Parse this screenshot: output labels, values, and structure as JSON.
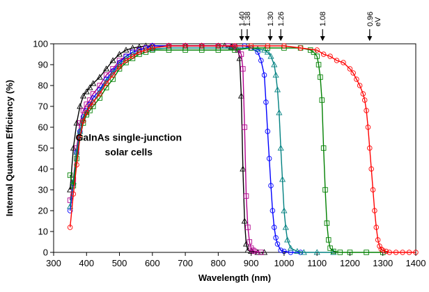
{
  "chart_data": {
    "type": "scatter",
    "xlabel": "Wavelength (nm)",
    "ylabel": "Internal Quantum Efficiency (%)",
    "xlim": [
      300,
      1400
    ],
    "ylim": [
      0,
      100
    ],
    "x_ticks": [
      "300",
      "400",
      "500",
      "600",
      "700",
      "800",
      "900",
      "1000",
      "1100",
      "1200",
      "1300",
      "1400"
    ],
    "y_ticks": [
      "0",
      "10",
      "20",
      "30",
      "40",
      "50",
      "60",
      "70",
      "80",
      "90",
      "100"
    ],
    "grid": false,
    "annotation_line1": "GaInAs single-junction",
    "annotation_line2": "solar cells",
    "bandgap_unit": "eV",
    "bandgap_markers": [
      {
        "label": "1.40",
        "x": 871
      },
      {
        "label": "1.38",
        "x": 888
      },
      {
        "label": "1.30",
        "x": 958
      },
      {
        "label": "1.26",
        "x": 990
      },
      {
        "label": "1.08",
        "x": 1117
      },
      {
        "label": "0.96",
        "x": 1260
      }
    ],
    "series": [
      {
        "marker": "triangle",
        "color": "#000000",
        "x": [
          350,
          360,
          370,
          380,
          390,
          400,
          410,
          420,
          440,
          460,
          480,
          500,
          520,
          540,
          560,
          580,
          600,
          650,
          700,
          750,
          800,
          820,
          840,
          850,
          860,
          865,
          870,
          875,
          880,
          885,
          890,
          900,
          920,
          940
        ],
        "y": [
          30,
          50,
          62,
          70,
          75,
          77,
          79,
          81,
          84,
          88,
          92,
          95,
          97,
          98,
          98.5,
          99,
          99,
          99,
          99,
          99,
          99,
          99,
          98.5,
          98,
          97,
          93,
          75,
          40,
          15,
          4,
          1,
          0.5,
          0,
          0
        ]
      },
      {
        "marker": "square",
        "color": "#b0008c",
        "x": [
          350,
          360,
          370,
          380,
          390,
          400,
          410,
          420,
          440,
          460,
          480,
          500,
          520,
          540,
          560,
          580,
          600,
          650,
          700,
          750,
          800,
          830,
          850,
          860,
          870,
          875,
          880,
          885,
          890,
          895,
          900,
          905,
          910,
          930
        ],
        "y": [
          25,
          35,
          50,
          62,
          68,
          71,
          73,
          76,
          80,
          85,
          88,
          92,
          94,
          96,
          97,
          98,
          99,
          99,
          99,
          99,
          99,
          99,
          98.5,
          97,
          95,
          88,
          60,
          27,
          12,
          5,
          2,
          1,
          0.5,
          0
        ]
      },
      {
        "marker": "circle",
        "color": "#0000ff",
        "x": [
          350,
          360,
          370,
          380,
          390,
          400,
          410,
          420,
          440,
          460,
          480,
          500,
          520,
          540,
          560,
          580,
          600,
          650,
          700,
          750,
          800,
          850,
          880,
          900,
          920,
          930,
          940,
          945,
          950,
          955,
          960,
          965,
          970,
          975,
          980,
          990,
          1000,
          1020,
          1050
        ],
        "y": [
          20,
          33,
          48,
          58,
          65,
          68,
          71,
          74,
          78,
          83,
          87,
          91,
          94,
          96,
          97,
          98,
          99,
          99,
          99,
          99,
          99,
          99,
          99,
          98,
          96,
          92,
          85,
          72,
          58,
          45,
          32,
          20,
          12,
          7,
          4,
          1,
          0.5,
          0,
          0
        ]
      },
      {
        "marker": "triangle",
        "color": "#008080",
        "x": [
          350,
          360,
          370,
          380,
          390,
          400,
          410,
          420,
          440,
          460,
          480,
          500,
          520,
          540,
          560,
          580,
          600,
          650,
          700,
          750,
          800,
          850,
          900,
          920,
          940,
          950,
          960,
          970,
          975,
          980,
          985,
          990,
          995,
          1000,
          1005,
          1010,
          1020,
          1040,
          1060,
          1100,
          1150
        ],
        "y": [
          22,
          34,
          48,
          58,
          64,
          67,
          70,
          72,
          77,
          82,
          86,
          90,
          93,
          95,
          96,
          97,
          97.5,
          98,
          98,
          98,
          98,
          98,
          98,
          97.5,
          97,
          96,
          94,
          90,
          85,
          78,
          67,
          50,
          35,
          20,
          12,
          6,
          2,
          0.5,
          0,
          0,
          0
        ]
      },
      {
        "marker": "square",
        "color": "#008000",
        "x": [
          350,
          360,
          370,
          380,
          390,
          400,
          410,
          420,
          440,
          460,
          480,
          500,
          520,
          540,
          560,
          580,
          600,
          650,
          700,
          750,
          800,
          850,
          900,
          950,
          1000,
          1050,
          1080,
          1090,
          1100,
          1105,
          1110,
          1115,
          1120,
          1125,
          1130,
          1135,
          1140,
          1150,
          1170,
          1200,
          1250,
          1300
        ],
        "y": [
          37,
          32,
          45,
          55,
          62,
          66,
          68,
          70,
          74,
          79,
          83,
          88,
          91,
          93,
          95,
          96,
          97,
          97,
          97,
          97,
          97,
          97,
          98,
          98,
          98,
          98,
          97,
          96,
          94,
          90,
          84,
          73,
          50,
          30,
          14,
          6,
          2,
          0.5,
          0,
          0,
          0,
          0
        ]
      },
      {
        "marker": "circle",
        "color": "#ff0000",
        "x": [
          350,
          360,
          370,
          380,
          390,
          400,
          410,
          420,
          440,
          460,
          480,
          500,
          520,
          540,
          560,
          580,
          600,
          650,
          700,
          750,
          800,
          850,
          900,
          950,
          1000,
          1050,
          1100,
          1120,
          1140,
          1160,
          1180,
          1200,
          1210,
          1220,
          1230,
          1240,
          1245,
          1250,
          1255,
          1260,
          1265,
          1270,
          1275,
          1280,
          1285,
          1290,
          1295,
          1300,
          1310,
          1320,
          1340,
          1360,
          1380,
          1400
        ],
        "y": [
          12,
          28,
          42,
          55,
          63,
          67,
          70,
          72,
          76,
          81,
          85,
          89,
          92,
          94,
          96,
          97,
          98,
          99,
          99,
          99,
          99,
          99,
          99,
          99,
          99,
          98,
          97,
          95,
          94,
          92,
          91,
          88,
          86,
          83,
          80,
          76,
          73,
          68,
          60,
          50,
          40,
          30,
          20,
          12,
          6,
          3,
          1.5,
          1,
          0.5,
          0,
          0,
          0,
          0,
          0
        ]
      }
    ]
  }
}
